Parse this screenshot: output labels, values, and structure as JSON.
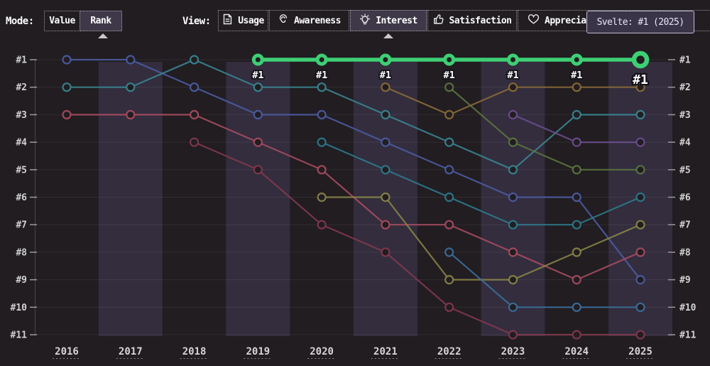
{
  "header": {
    "mode_label": "Mode:",
    "mode_options": [
      {
        "label": "Value",
        "selected": false
      },
      {
        "label": "Rank",
        "selected": true
      }
    ],
    "view_label": "View:",
    "view_options": [
      {
        "label": "Usage",
        "icon": "document-icon",
        "selected": false
      },
      {
        "label": "Awareness",
        "icon": "ear-icon",
        "selected": false
      },
      {
        "label": "Interest",
        "icon": "lightbulb-icon",
        "selected": true
      },
      {
        "label": "Satisfaction",
        "icon": "thumbs-up-icon",
        "selected": false
      },
      {
        "label": "Appreciation",
        "icon": "heart-icon",
        "selected": false
      }
    ],
    "tooltip_text": "Svelte: #1 (2025)"
  },
  "colors": {
    "background": "#211d21",
    "year_band": "#332d3e",
    "accent_green": "#3ecf74",
    "selected_button_bg": "#3e3849",
    "tooltip_bg": "#3a3448",
    "axis_text": "#d2d2d2"
  },
  "chart_data": {
    "type": "line",
    "variant": "bump-chart-rank",
    "title": "",
    "x": [
      2016,
      2017,
      2018,
      2019,
      2020,
      2021,
      2022,
      2023,
      2024,
      2025
    ],
    "y_ticks": [
      "#1",
      "#2",
      "#3",
      "#4",
      "#5",
      "#6",
      "#7",
      "#8",
      "#9",
      "#10",
      "#11"
    ],
    "y_axis_inverted": true,
    "ylim": [
      1,
      11
    ],
    "grid": "horizontal",
    "highlighted_series": "Svelte",
    "highlight_point_label": "#1",
    "series": [
      {
        "id": "indigo",
        "color": "#4c5ea6",
        "ranks": [
          1,
          1,
          2,
          3,
          3,
          4,
          5,
          6,
          6,
          9
        ]
      },
      {
        "id": "teal",
        "color": "#3b8894",
        "ranks": [
          2,
          2,
          1,
          2,
          2,
          3,
          4,
          5,
          3,
          3
        ]
      },
      {
        "id": "rose",
        "color": "#ac4d61",
        "ranks": [
          3,
          3,
          3,
          4,
          5,
          7,
          7,
          8,
          9,
          8
        ]
      },
      {
        "id": "maroon",
        "color": "#86394e",
        "ranks": [
          null,
          null,
          4,
          5,
          7,
          8,
          10,
          11,
          11,
          11
        ]
      },
      {
        "id": "dark-teal",
        "color": "#2e7d8e",
        "ranks": [
          null,
          null,
          null,
          null,
          4,
          5,
          6,
          7,
          7,
          6
        ]
      },
      {
        "id": "khaki",
        "color": "#8c8748",
        "ranks": [
          null,
          null,
          null,
          null,
          6,
          6,
          9,
          9,
          8,
          7
        ]
      },
      {
        "id": "bronze",
        "color": "#8d6d38",
        "ranks": [
          null,
          null,
          null,
          null,
          null,
          2,
          3,
          2,
          2,
          2
        ]
      },
      {
        "id": "olive-green",
        "color": "#5c7840",
        "ranks": [
          null,
          null,
          null,
          null,
          null,
          null,
          2,
          4,
          5,
          5
        ]
      },
      {
        "id": "steel-blue",
        "color": "#3c719f",
        "ranks": [
          null,
          null,
          null,
          null,
          null,
          null,
          8,
          10,
          10,
          10
        ]
      },
      {
        "id": "violet",
        "color": "#6f4e91",
        "ranks": [
          null,
          null,
          null,
          null,
          null,
          null,
          null,
          3,
          4,
          4
        ]
      },
      {
        "id": "Svelte",
        "color": "#3ecf74",
        "ranks": [
          null,
          null,
          null,
          1,
          1,
          1,
          1,
          1,
          1,
          1
        ],
        "highlight": true
      }
    ]
  }
}
